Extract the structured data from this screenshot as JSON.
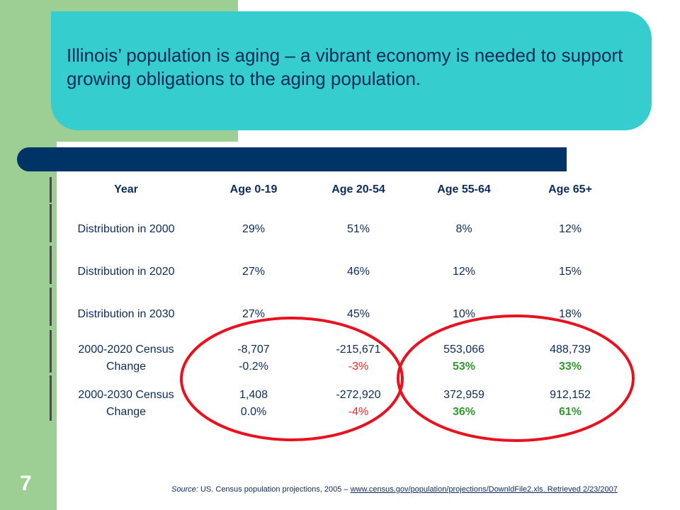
{
  "title": "Illinois’ population is aging – a vibrant economy is needed to support growing obligations to the aging population.",
  "table": {
    "headers": [
      "Year",
      "Age 0-19",
      "Age 20-54",
      "Age 55-64",
      "Age 65+"
    ],
    "rows": [
      {
        "label": "Distribution in 2000",
        "values": [
          "29%",
          "51%",
          "8%",
          "12%"
        ]
      },
      {
        "label": "Distribution in 2020",
        "values": [
          "27%",
          "46%",
          "12%",
          "15%"
        ]
      },
      {
        "label": "Distribution in 2030",
        "values": [
          "27%",
          "45%",
          "10%",
          "18%"
        ]
      }
    ],
    "change_rows": [
      {
        "label_line1": "2000-2020 Census",
        "label_line2": "Change",
        "counts": [
          "-8,707",
          "-215,671",
          "553,066",
          "488,739"
        ],
        "pcts": [
          "-0.2%",
          "-3%",
          "53%",
          "33%"
        ]
      },
      {
        "label_line1": "2000-2030 Census",
        "label_line2": "Change",
        "counts": [
          "1,408",
          "-272,920",
          "372,959",
          "912,152"
        ],
        "pcts": [
          "0.0%",
          "-4%",
          "36%",
          "61%"
        ]
      }
    ]
  },
  "source": {
    "prefix": "Source:",
    "text": " US. Census population projections, 2005 – ",
    "link": "www.census.gov/population/projections/DownldFile2.xls. Retrieved 2/23/2007"
  },
  "page_number": "7",
  "colors": {
    "green": "#9dcf94",
    "teal": "#35cdcd",
    "navy": "#003366",
    "text": "#0d2b5a",
    "negative": "#ff2020",
    "positive": "#2f9a2f",
    "oval": "#e8121f"
  }
}
